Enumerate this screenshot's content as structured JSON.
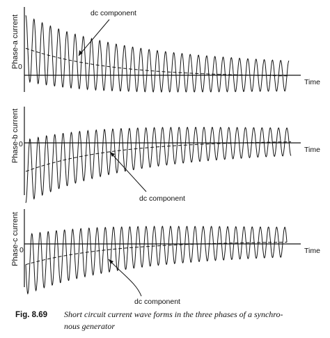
{
  "figure": {
    "number": "Fig. 8.69",
    "caption_line1": "Short circuit current wave forms in the three phases of a synchro-",
    "caption_line2": "nous generator"
  },
  "axes": {
    "time_label": "Time",
    "zero_label": "0"
  },
  "annotation_text": "dc component",
  "panels": [
    {
      "ylabel": "Phase-a current",
      "ac_start": 1.0,
      "ac_end": 0.46,
      "dc_start": 0.45,
      "dc_end": -0.03,
      "cycles": 32
    },
    {
      "ylabel": "Phase-b current",
      "ac_start": 1.0,
      "ac_end": 0.44,
      "dc_start": -0.5,
      "dc_end": 0.04,
      "cycles": 32
    },
    {
      "ylabel": "Phase-c current",
      "ac_start": 1.0,
      "ac_end": 0.5,
      "dc_start": -0.38,
      "dc_end": 0.05,
      "cycles": 32
    }
  ]
}
